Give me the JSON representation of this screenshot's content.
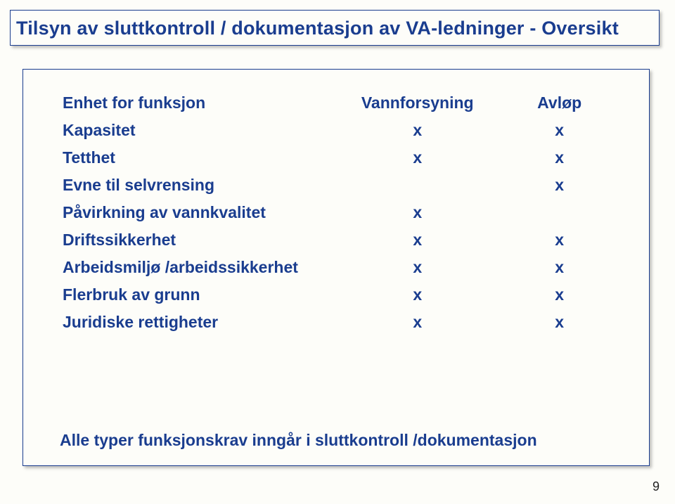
{
  "colors": {
    "text": "#1a3d8f",
    "border": "#1a3d8f",
    "background": "#fdfdf9",
    "shadow": "rgba(0,0,0,0.25)"
  },
  "title": "Tilsyn av sluttkontroll / dokumentasjon av VA-ledninger - Oversikt",
  "table": {
    "header": {
      "label": "Enhet for funksjon",
      "col_v": "Vannforsyning",
      "col_a": "Avløp"
    },
    "rows": [
      {
        "label": "Kapasitet",
        "v": "x",
        "a": "x"
      },
      {
        "label": "Tetthet",
        "v": "x",
        "a": "x"
      },
      {
        "label": "Evne til selvrensing",
        "v": "",
        "a": "x"
      },
      {
        "label": "Påvirkning av vannkvalitet",
        "v": "x",
        "a": ""
      },
      {
        "label": "Driftssikkerhet",
        "v": "x",
        "a": "x"
      },
      {
        "label": "Arbeidsmiljø /arbeidssikkerhet",
        "v": "x",
        "a": "x"
      },
      {
        "label": "Flerbruk av grunn",
        "v": "x",
        "a": "x"
      },
      {
        "label": "Juridiske rettigheter",
        "v": "x",
        "a": "x"
      }
    ]
  },
  "footer": "Alle typer funksjonskrav inngår i sluttkontroll /dokumentasjon",
  "page_number": "9"
}
